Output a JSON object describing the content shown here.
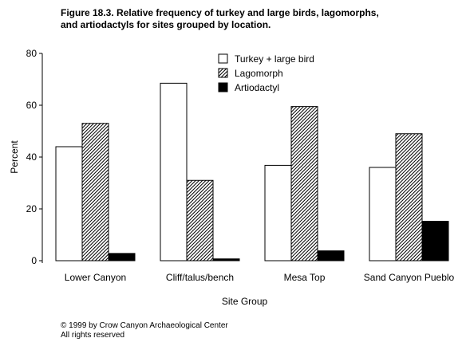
{
  "figure": {
    "title_line1": "Figure 18.3.  Relative frequency of turkey and large birds, lagomorphs,",
    "title_line2": "and artiodactyls for sites grouped by location.",
    "copyright_line1": "© 1999 by Crow Canyon Archaeological Center",
    "copyright_line2": "All rights reserved"
  },
  "chart_data": {
    "type": "bar",
    "title": "Figure 18.3.  Relative frequency of turkey and large birds, lagomorphs, and artiodactyls for sites grouped by location.",
    "xlabel": "Site Group",
    "ylabel": "Percent",
    "ylim": [
      0,
      80
    ],
    "yticks": [
      0,
      20,
      40,
      60,
      80
    ],
    "grid": false,
    "legend_position": "top-center",
    "categories": [
      "Lower Canyon",
      "Cliff/talus/bench",
      "Mesa Top",
      "Sand Canyon Pueblo"
    ],
    "series": [
      {
        "name": "Turkey + large bird",
        "values": [
          44,
          68.5,
          36.8,
          36
        ],
        "fill": "white"
      },
      {
        "name": "Lagomorph",
        "values": [
          53,
          31,
          59.5,
          49
        ],
        "fill": "hatched"
      },
      {
        "name": "Artiodactyl",
        "values": [
          2.8,
          0.7,
          3.8,
          15.2
        ],
        "fill": "black"
      }
    ]
  }
}
